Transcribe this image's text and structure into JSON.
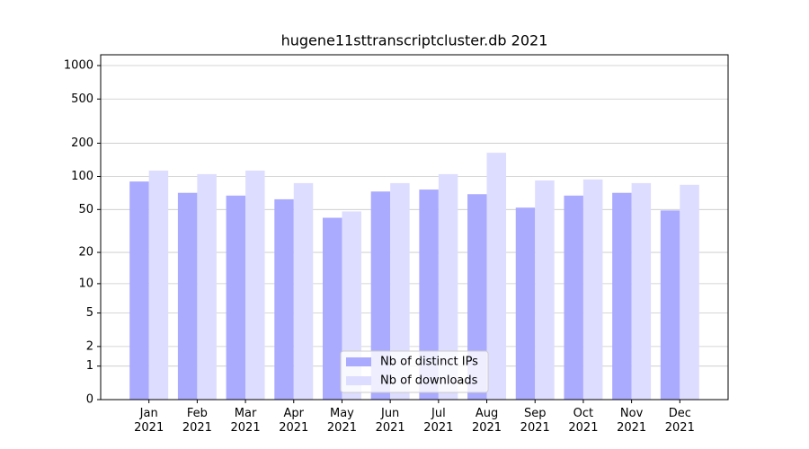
{
  "chart_data": {
    "type": "bar",
    "title": "hugene11sttranscriptcluster.db 2021",
    "categories": [
      "Jan\n2021",
      "Feb\n2021",
      "Mar\n2021",
      "Apr\n2021",
      "May\n2021",
      "Jun\n2021",
      "Jul\n2021",
      "Aug\n2021",
      "Sep\n2021",
      "Oct\n2021",
      "Nov\n2021",
      "Dec\n2021"
    ],
    "series": [
      {
        "name": "Nb of distinct IPs",
        "color": "#aaaaff",
        "values": [
          90,
          71,
          67,
          62,
          42,
          73,
          76,
          69,
          52,
          67,
          71,
          49
        ]
      },
      {
        "name": "Nb of downloads",
        "color": "#ddddff",
        "values": [
          113,
          105,
          113,
          87,
          48,
          87,
          105,
          164,
          92,
          94,
          87,
          84
        ]
      }
    ],
    "yscale": "log1p",
    "ylim": [
      0,
      1250
    ],
    "yticks": [
      0,
      1,
      2,
      5,
      10,
      20,
      50,
      100,
      200,
      500,
      1000
    ],
    "grid": true,
    "legend": "lower center"
  }
}
